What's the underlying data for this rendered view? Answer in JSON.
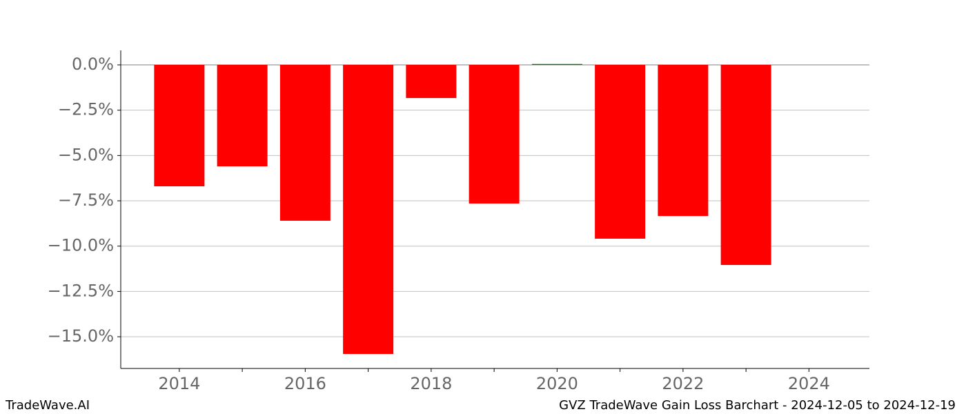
{
  "chart_data": {
    "type": "bar",
    "x": [
      2014,
      2015,
      2016,
      2017,
      2018,
      2019,
      2020,
      2021,
      2022,
      2023
    ],
    "values": [
      -6.7,
      -5.6,
      -8.6,
      -15.95,
      -1.83,
      -7.65,
      0.05,
      -9.59,
      -8.34,
      -11.04
    ],
    "colors": [
      "#ff0000",
      "#ff0000",
      "#ff0000",
      "#ff0000",
      "#ff0000",
      "#ff0000",
      "#008000",
      "#ff0000",
      "#ff0000",
      "#ff0000"
    ],
    "bar_width": 0.8,
    "xlim": [
      2013.07,
      2024.96
    ],
    "xticks": [
      2014,
      2016,
      2018,
      2020,
      2022,
      2024
    ],
    "xminorticks": [
      2015,
      2017,
      2019,
      2021,
      2023
    ],
    "ylim": [
      -16.75,
      0.8
    ],
    "yticks": [
      {
        "value": 0,
        "label": "0.0%"
      },
      {
        "value": -2.5,
        "label": "−2.5%"
      },
      {
        "value": -5,
        "label": "−5.0%"
      },
      {
        "value": -7.5,
        "label": "−7.5%"
      },
      {
        "value": -10,
        "label": "−10.0%"
      },
      {
        "value": -12.5,
        "label": "−12.5%"
      },
      {
        "value": -15,
        "label": "−15.0%"
      }
    ],
    "grid": true,
    "footer_left": "TradeWave.AI",
    "footer_right": "GVZ TradeWave Gain Loss Barchart - 2024-12-05 to 2024-12-19"
  }
}
